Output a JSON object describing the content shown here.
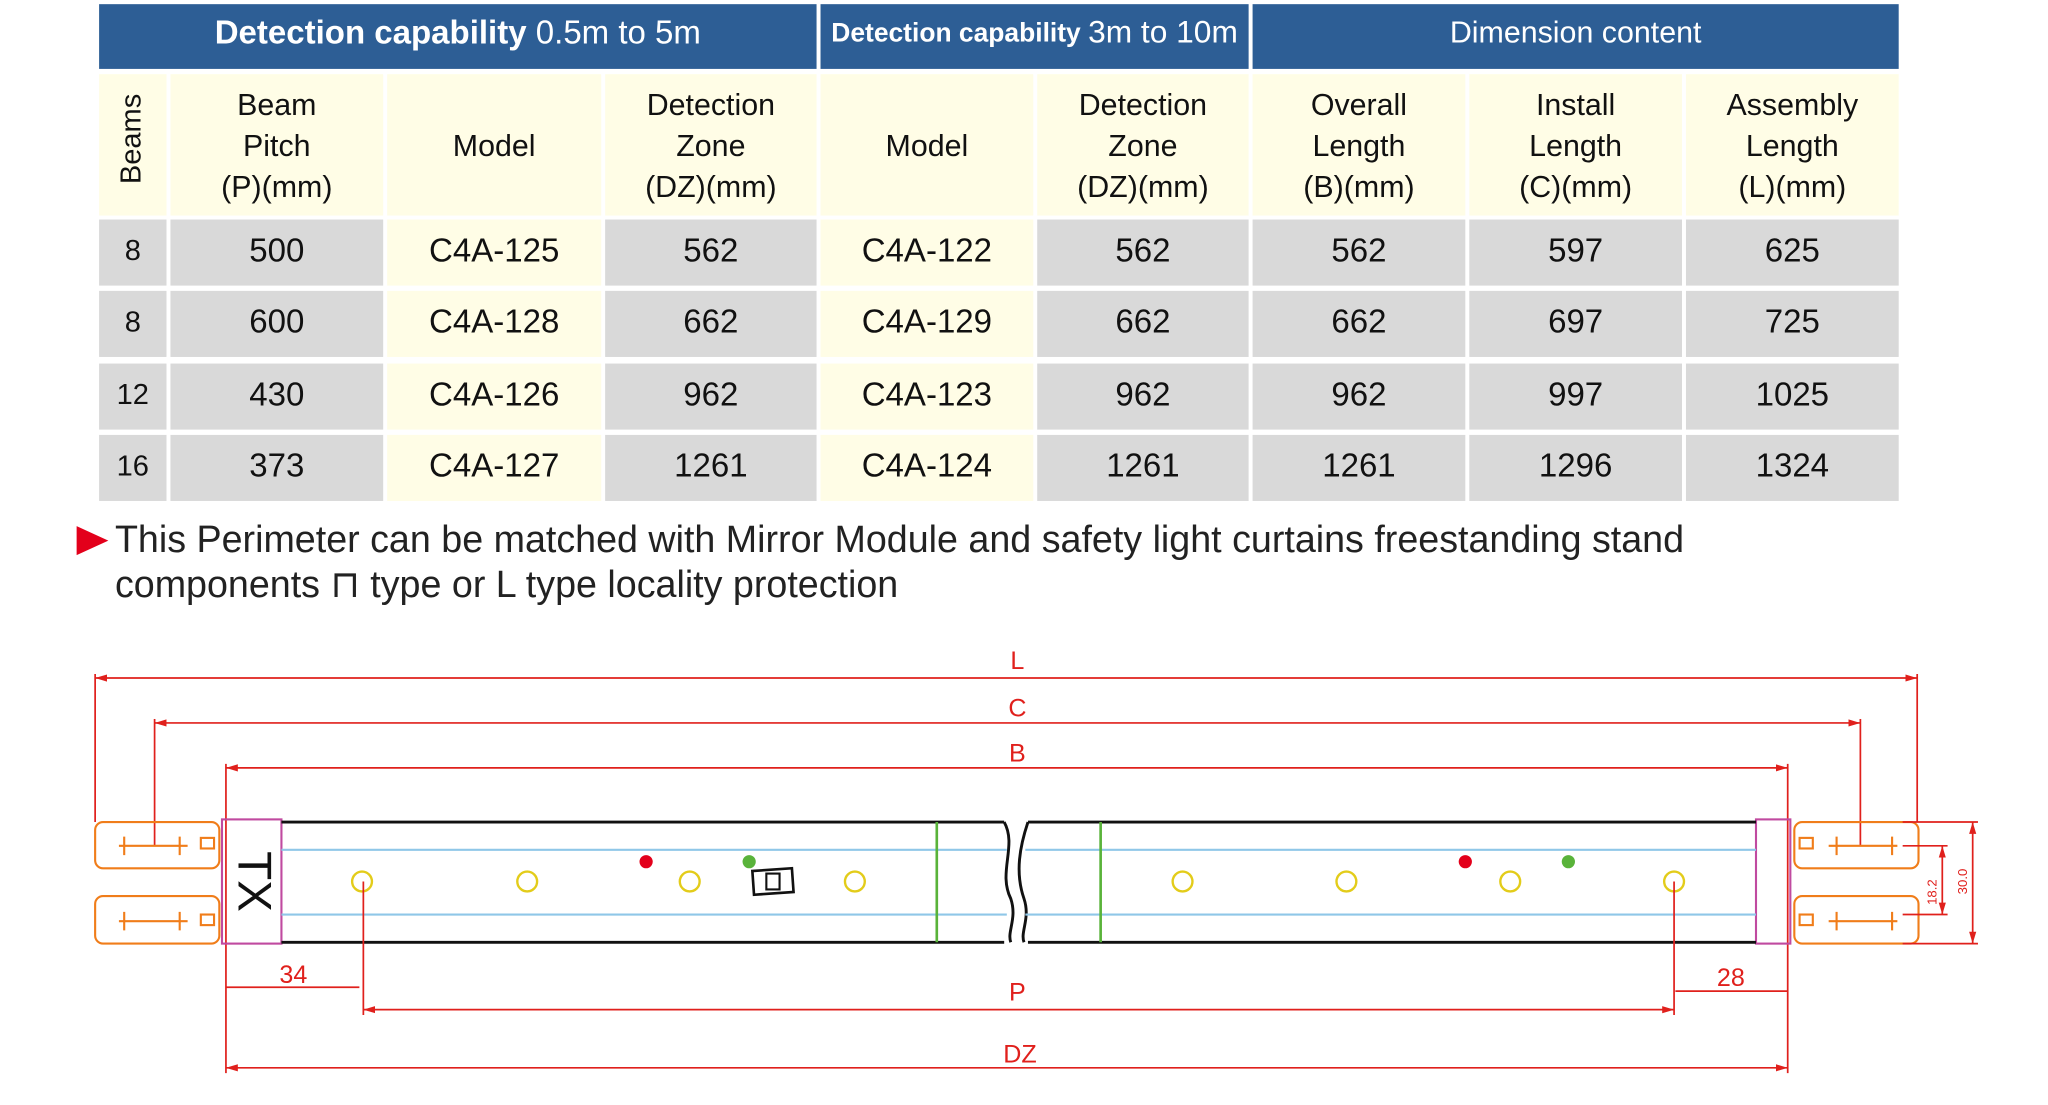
{
  "table": {
    "groups": [
      {
        "label": "Detection capability",
        "range": "0.5m to 5m"
      },
      {
        "label": "Detection capability",
        "range": "3m to 10m"
      },
      {
        "label": "Dimension content"
      }
    ],
    "columns": [
      [
        "Beams"
      ],
      [
        "Beam",
        "Pitch",
        "(P)(mm)"
      ],
      [
        "Model"
      ],
      [
        "Detection",
        "Zone",
        "(DZ)(mm)"
      ],
      [
        "Model"
      ],
      [
        "Detection",
        "Zone",
        "(DZ)(mm)"
      ],
      [
        "Overall",
        "Length",
        "(B)(mm)"
      ],
      [
        "Install",
        "Length",
        "(C)(mm)"
      ],
      [
        "Assembly",
        "Length",
        "(L)(mm)"
      ]
    ],
    "rows": [
      [
        8,
        500,
        "C4A-125",
        562,
        "C4A-122",
        562,
        562,
        597,
        625
      ],
      [
        8,
        600,
        "C4A-128",
        662,
        "C4A-129",
        662,
        662,
        697,
        725
      ],
      [
        12,
        430,
        "C4A-126",
        962,
        "C4A-123",
        962,
        962,
        997,
        1025
      ],
      [
        16,
        373,
        "C4A-127",
        1261,
        "C4A-124",
        1261,
        1261,
        1296,
        1324
      ]
    ]
  },
  "note": {
    "lines": [
      "This Perimeter can be matched with Mirror Module and safety light curtains freestanding stand",
      "components ⊓ type or L type  locality protection"
    ]
  },
  "diagram": {
    "labels": {
      "L": "L",
      "C": "C",
      "B": "B",
      "P": "P",
      "DZ": "DZ",
      "left_offset": "34",
      "right_offset": "28",
      "unit": "TX",
      "inner_height": "18.2",
      "outer_height": "30.0"
    }
  }
}
